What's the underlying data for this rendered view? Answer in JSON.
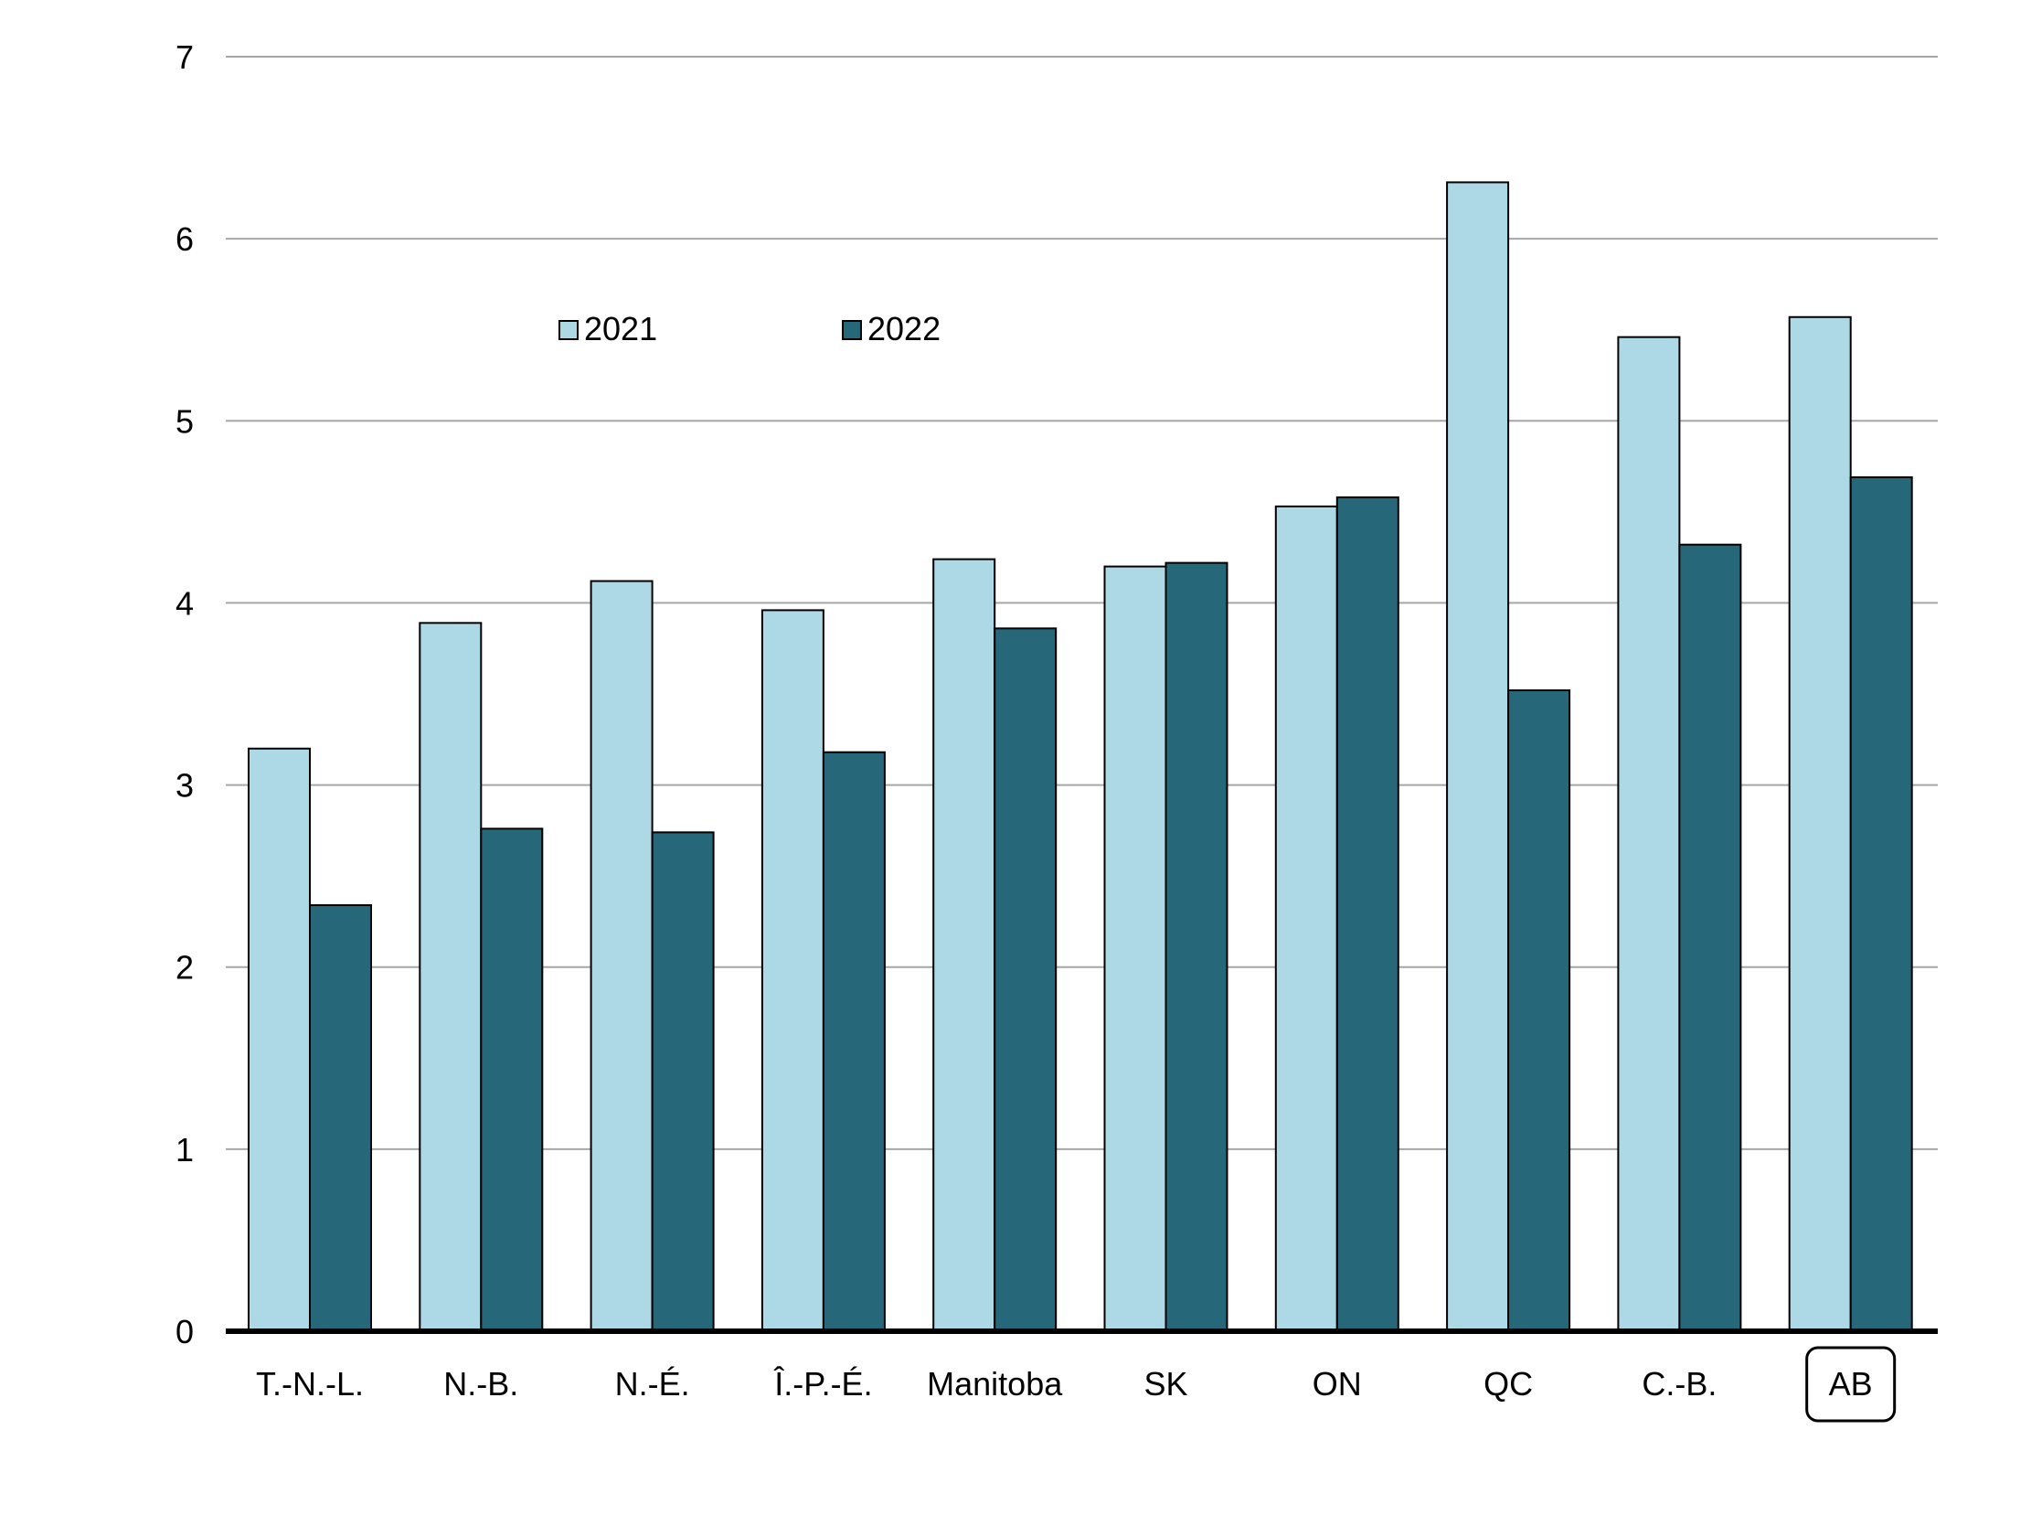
{
  "chart_data": {
    "type": "bar",
    "title": "",
    "xlabel": "",
    "ylabel": "",
    "ylim": [
      0,
      7
    ],
    "yticks": [
      0,
      1,
      2,
      3,
      4,
      5,
      6,
      7
    ],
    "grid": true,
    "legend_position": "top-left",
    "highlighted_category": "AB",
    "categories": [
      "T.-N.-L.",
      "N.-B.",
      "N.-É.",
      "Î.-P.-É.",
      "Manitoba",
      "SK",
      "ON",
      "QC",
      "C.-B.",
      "AB"
    ],
    "series": [
      {
        "name": "2021",
        "color": "#add8e6",
        "values": [
          3.2,
          3.89,
          4.12,
          3.96,
          4.24,
          4.2,
          4.53,
          6.31,
          5.46,
          5.57
        ]
      },
      {
        "name": "2022",
        "color": "#27677a",
        "values": [
          2.34,
          2.76,
          2.74,
          3.18,
          3.86,
          4.22,
          4.58,
          3.52,
          4.32,
          4.69
        ]
      }
    ]
  }
}
